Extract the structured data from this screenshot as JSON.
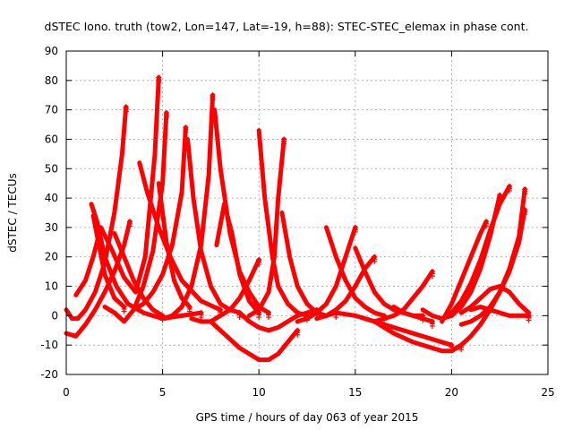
{
  "chart_data": {
    "type": "line",
    "title": "dSTEC Iono. truth (tow2, Lon=147, Lat=-19, h=88): STEC-STEC_elemax in phase cont.",
    "xlabel": "GPS time / hours of day 063 of year 2015",
    "ylabel": "dSTEC  / TECUs",
    "xlim": [
      0,
      25
    ],
    "ylim": [
      -20,
      90
    ],
    "xticks": [
      0,
      5,
      10,
      15,
      20,
      25
    ],
    "yticks": [
      -20,
      -10,
      0,
      10,
      20,
      30,
      40,
      50,
      60,
      70,
      80,
      90
    ],
    "grid": true,
    "legend": "none",
    "series_color": "#ff0000",
    "series": [
      {
        "x": [
          0.0,
          0.3,
          0.6,
          1.0,
          1.5,
          2.0,
          2.5,
          2.9,
          3.1
        ],
        "values": [
          2,
          -1,
          -1,
          2,
          8,
          18,
          35,
          55,
          71
        ]
      },
      {
        "x": [
          0.0,
          0.5,
          1.0,
          1.5,
          2.0,
          2.5,
          3.0,
          3.3
        ],
        "values": [
          -6,
          -7,
          -3,
          2,
          8,
          15,
          24,
          32
        ]
      },
      {
        "x": [
          0.5,
          1.0,
          1.4,
          1.8,
          2.4,
          3.0,
          3.6,
          4.1,
          4.6,
          4.8
        ],
        "values": [
          7,
          12,
          20,
          30,
          22,
          13,
          8,
          20,
          55,
          81
        ]
      },
      {
        "x": [
          1.3,
          1.6,
          2.0,
          2.6,
          3.2,
          4.0,
          5.0,
          6.0,
          7.0
        ],
        "values": [
          38,
          32,
          20,
          10,
          4,
          1,
          -1,
          0,
          1
        ]
      },
      {
        "x": [
          1.4,
          1.7,
          2.0,
          2.5,
          3.0
        ],
        "values": [
          34,
          24,
          14,
          6,
          3
        ]
      },
      {
        "x": [
          2.0,
          2.5,
          3.0,
          3.5,
          4.0,
          4.5,
          5.0,
          5.2
        ],
        "values": [
          3,
          1,
          -2,
          2,
          10,
          22,
          45,
          69
        ]
      },
      {
        "x": [
          2.5,
          3.0,
          3.5,
          4.0,
          4.5,
          5.0
        ],
        "values": [
          28,
          20,
          12,
          6,
          2,
          0
        ]
      },
      {
        "x": [
          3.8,
          4.2,
          4.8,
          5.4,
          6.0,
          7.0,
          8.0
        ],
        "values": [
          52,
          42,
          30,
          20,
          12,
          5,
          2
        ]
      },
      {
        "x": [
          4.8,
          5.2,
          5.6,
          6.0,
          6.4
        ],
        "values": [
          45,
          25,
          12,
          6,
          3
        ]
      },
      {
        "x": [
          3.5,
          4.0,
          4.5,
          5.0,
          5.5,
          6.0,
          6.2
        ],
        "values": [
          2,
          4,
          8,
          14,
          24,
          42,
          64
        ]
      },
      {
        "x": [
          6.3,
          6.6,
          7.0,
          7.5,
          8.0,
          8.5,
          9.0
        ],
        "values": [
          60,
          40,
          22,
          10,
          4,
          2,
          1
        ]
      },
      {
        "x": [
          5.0,
          5.5,
          6.0,
          6.5,
          7.0,
          7.4,
          7.6
        ],
        "values": [
          -1,
          0,
          3,
          10,
          24,
          48,
          75
        ]
      },
      {
        "x": [
          7.7,
          8.0,
          8.5,
          9.0,
          9.5,
          10.0,
          10.5
        ],
        "values": [
          70,
          50,
          28,
          15,
          8,
          3,
          1
        ]
      },
      {
        "x": [
          7.8,
          8.2,
          8.6,
          9.0,
          9.5,
          10.0
        ],
        "values": [
          24,
          38,
          28,
          14,
          5,
          1
        ]
      },
      {
        "x": [
          6.5,
          7.0,
          7.5,
          8.0,
          8.5,
          9.0,
          9.5,
          10.0
        ],
        "values": [
          -1,
          -2,
          -2,
          0,
          2,
          6,
          12,
          19
        ]
      },
      {
        "x": [
          7.5,
          8.0,
          8.5,
          9.0,
          9.5,
          10.0,
          10.5,
          11.0,
          11.5,
          12.0
        ],
        "values": [
          -2,
          -5,
          -8,
          -11,
          -13,
          -15,
          -15,
          -13,
          -9,
          -5
        ]
      },
      {
        "x": [
          10.0,
          10.3,
          10.7,
          11.0,
          11.5,
          12.0,
          12.5
        ],
        "values": [
          63,
          40,
          20,
          10,
          4,
          1,
          0
        ]
      },
      {
        "x": [
          9.5,
          10.0,
          10.5,
          10.8,
          11.0,
          11.3
        ],
        "values": [
          0,
          2,
          8,
          20,
          40,
          60
        ]
      },
      {
        "x": [
          11.2,
          11.6,
          12.0,
          12.5,
          13.0,
          13.5,
          14.0
        ],
        "values": [
          35,
          20,
          10,
          4,
          1,
          0,
          1
        ]
      },
      {
        "x": [
          9.0,
          9.5,
          10.0,
          10.5,
          11.0,
          11.5,
          12.0,
          12.5,
          13.0
        ],
        "values": [
          1,
          -2,
          -4,
          -5,
          -4,
          -2,
          0,
          1,
          2
        ]
      },
      {
        "x": [
          12.0,
          12.5,
          13.0,
          13.5,
          14.0,
          14.5,
          15.0
        ],
        "values": [
          -2,
          -1,
          1,
          4,
          10,
          20,
          30
        ]
      },
      {
        "x": [
          13.5,
          14.0,
          14.5,
          15.0,
          15.5,
          16.0,
          16.5
        ],
        "values": [
          30,
          20,
          12,
          6,
          3,
          1,
          0
        ]
      },
      {
        "x": [
          15.0,
          15.5,
          16.0,
          16.5,
          17.0,
          17.5,
          18.0,
          18.5
        ],
        "values": [
          23,
          15,
          8,
          4,
          2,
          1,
          0,
          0
        ]
      },
      {
        "x": [
          13.0,
          13.5,
          14.0,
          14.5,
          15.0,
          15.5,
          16.0
        ],
        "values": [
          -1,
          0,
          2,
          5,
          10,
          16,
          20
        ]
      },
      {
        "x": [
          15.5,
          16.0,
          16.5,
          17.0,
          17.5,
          18.0,
          18.5,
          19.0
        ],
        "values": [
          -1,
          -2,
          -1,
          0,
          2,
          6,
          10,
          15
        ]
      },
      {
        "x": [
          14.0,
          15.0,
          16.0,
          17.0,
          18.0,
          19.0,
          20.0
        ],
        "values": [
          1,
          0,
          -2,
          -4,
          -6,
          -8,
          -10
        ]
      },
      {
        "x": [
          16.0,
          17.0,
          18.0,
          19.0,
          19.5,
          20.0,
          20.5
        ],
        "values": [
          -2,
          -6,
          -9,
          -11,
          -12,
          -12,
          -10
        ]
      },
      {
        "x": [
          17.0,
          17.5,
          18.0,
          18.5,
          19.0
        ],
        "values": [
          3,
          1,
          0,
          -1,
          -2
        ]
      },
      {
        "x": [
          18.5,
          19.0,
          19.5,
          20.0,
          20.5,
          21.0,
          21.5,
          22.0,
          22.5
        ],
        "values": [
          2,
          0,
          -1,
          0,
          3,
          8,
          16,
          27,
          41
        ]
      },
      {
        "x": [
          19.5,
          20.0,
          20.5,
          21.0,
          21.5,
          22.0,
          22.5,
          23.0
        ],
        "values": [
          -1,
          1,
          5,
          11,
          19,
          29,
          38,
          44
        ]
      },
      {
        "x": [
          20.0,
          20.5,
          21.0,
          21.5,
          22.0,
          22.5,
          23.0,
          23.5,
          23.8
        ],
        "values": [
          -12,
          -10,
          -7,
          -3,
          2,
          8,
          16,
          27,
          43
        ]
      },
      {
        "x": [
          19.5,
          20.0,
          20.5,
          21.0,
          21.5,
          21.8
        ],
        "values": [
          -2,
          4,
          12,
          20,
          28,
          32
        ]
      },
      {
        "x": [
          20.5,
          21.0,
          21.5,
          22.0,
          22.5,
          23.0,
          23.5,
          23.8
        ],
        "values": [
          -3,
          -2,
          0,
          3,
          8,
          15,
          25,
          36
        ]
      },
      {
        "x": [
          20.5,
          21.0,
          21.5,
          22.0,
          22.5,
          23.0,
          23.5,
          24.0
        ],
        "values": [
          1,
          3,
          6,
          9,
          10,
          8,
          4,
          1
        ]
      },
      {
        "x": [
          21.0,
          21.5,
          22.0,
          22.5,
          23.0,
          23.5,
          24.0
        ],
        "values": [
          2,
          3,
          2,
          1,
          0,
          0,
          0
        ]
      }
    ]
  }
}
